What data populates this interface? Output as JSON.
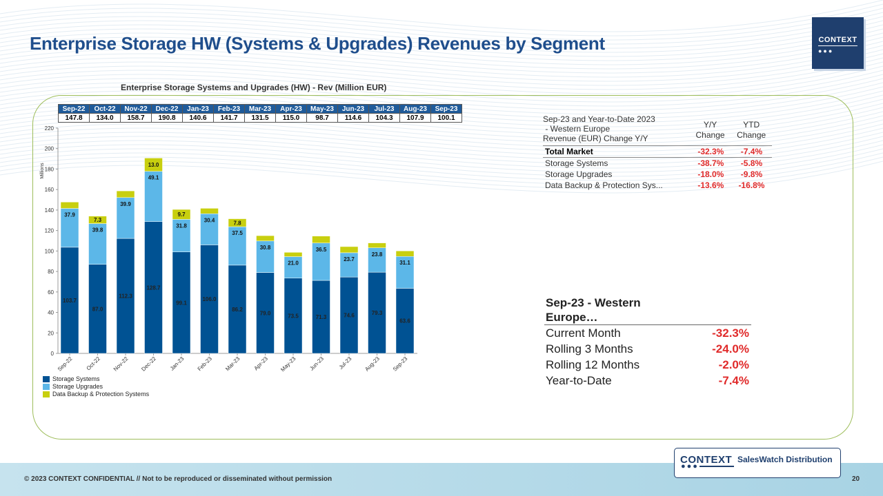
{
  "page": {
    "title": "Enterprise Storage HW (Systems & Upgrades) Revenues by Segment",
    "logo_text": "CONTEXT",
    "copyright": "© 2023 CONTEXT CONFIDENTIAL // Not to be reproduced or disseminated without permission",
    "page_number": "20",
    "brand_label": "SalesWatch Distribution"
  },
  "colors": {
    "title": "#1f4e8c",
    "storage_systems": "#005293",
    "storage_upgrades": "#5cb7e8",
    "data_backup": "#c8cf0f",
    "negative": "#e02a2a"
  },
  "chart_data": {
    "type": "bar",
    "stacked": true,
    "title": "Enterprise Storage Systems and Upgrades (HW)  - Rev (Million EUR)",
    "ylabel": "Millions",
    "xlabel": "",
    "ylim": [
      0,
      220
    ],
    "yticks": [
      0,
      20,
      40,
      60,
      80,
      100,
      120,
      140,
      160,
      180,
      200,
      220
    ],
    "categories": [
      "Sep-22",
      "Oct-22",
      "Nov-22",
      "Dec-22",
      "Jan-23",
      "Feb-23",
      "Mar-23",
      "Apr-23",
      "May-23",
      "Jun-23",
      "Jul-23",
      "Aug-23",
      "Sep-23"
    ],
    "totals": [
      "147.8",
      "134.0",
      "158.7",
      "190.8",
      "140.6",
      "141.7",
      "131.5",
      "115.0",
      "98.7",
      "114.6",
      "104.3",
      "107.9",
      "100.1"
    ],
    "series": [
      {
        "name": "Storage Systems",
        "color": "#005293",
        "values": [
          103.7,
          87.0,
          112.3,
          128.7,
          99.1,
          106.0,
          86.2,
          79.0,
          73.5,
          71.3,
          74.6,
          79.3,
          63.6
        ],
        "labels": [
          "103.7",
          "87.0",
          "112.3",
          "128.7",
          "99.1",
          "106.0",
          "86.2",
          "79.0",
          "73.5",
          "71.3",
          "74.6",
          "79.3",
          "63.6"
        ]
      },
      {
        "name": "Storage Upgrades",
        "color": "#5cb7e8",
        "values": [
          37.9,
          39.8,
          39.9,
          49.1,
          31.8,
          30.4,
          37.5,
          30.8,
          21.0,
          36.5,
          23.7,
          23.8,
          31.1
        ],
        "labels": [
          "37.9",
          "39.8",
          "39.9",
          "49.1",
          "31.8",
          "30.4",
          "37.5",
          "30.8",
          "21.0",
          "36.5",
          "23.7",
          "23.8",
          "31.1"
        ]
      },
      {
        "name": "Data Backup & Protection Systems",
        "color": "#c8cf0f",
        "values": [
          6.2,
          7.3,
          6.5,
          13.0,
          9.7,
          5.3,
          7.8,
          5.2,
          4.2,
          6.8,
          6.0,
          4.8,
          5.4
        ],
        "labels": [
          "",
          "7.3",
          "",
          "13.0",
          "9.7",
          "",
          "7.8",
          "",
          "",
          "",
          "",
          "",
          ""
        ]
      }
    ],
    "legend": [
      "Storage Systems",
      "Storage Upgrades",
      "Data Backup & Protection Systems"
    ],
    "legend_position": "bottom-left"
  },
  "change_table": {
    "header_desc": [
      "Sep-23 and Year-to-Date 2023",
      " - Western Europe",
      "Revenue (EUR) Change Y/Y"
    ],
    "col1": [
      "Y/Y",
      "Change"
    ],
    "col2": [
      "YTD",
      "Change"
    ],
    "rows": [
      {
        "label": "Total Market",
        "yy": "-32.3%",
        "ytd": "-7.4%"
      },
      {
        "label": "Storage Systems",
        "yy": "-38.7%",
        "ytd": "-5.8%"
      },
      {
        "label": "Storage Upgrades",
        "yy": "-18.0%",
        "ytd": "-9.8%"
      },
      {
        "label": "Data Backup & Protection Sys...",
        "yy": "-13.6%",
        "ytd": "-16.8%"
      }
    ]
  },
  "summary_table": {
    "header": [
      "Sep-23 - Western",
      "Europe…"
    ],
    "rows": [
      {
        "label": "Current Month",
        "value": "-32.3%"
      },
      {
        "label": "Rolling 3 Months",
        "value": "-24.0%"
      },
      {
        "label": "Rolling 12 Months",
        "value": "-2.0%"
      },
      {
        "label": "Year-to-Date",
        "value": "-7.4%"
      }
    ]
  }
}
